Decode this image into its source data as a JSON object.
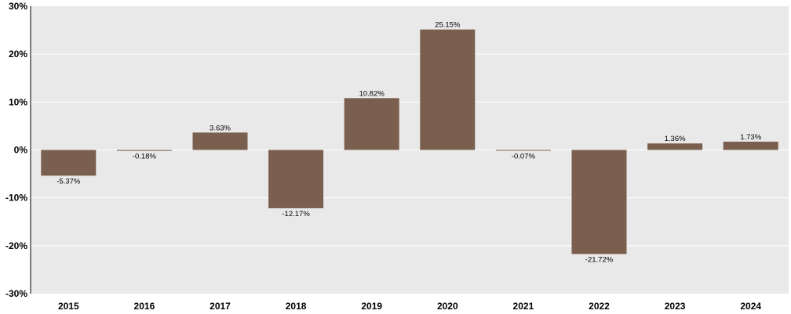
{
  "chart_data": {
    "type": "bar",
    "title": "",
    "xlabel": "",
    "ylabel": "",
    "categories": [
      "2015",
      "2016",
      "2017",
      "2018",
      "2019",
      "2020",
      "2021",
      "2022",
      "2023",
      "2024"
    ],
    "values": [
      -5.37,
      -0.18,
      3.63,
      -12.17,
      10.82,
      25.15,
      -0.07,
      -21.72,
      1.36,
      1.73
    ],
    "data_labels": [
      "-5.37%",
      "-0.18%",
      "3.63%",
      "-12.17%",
      "10.82%",
      "25.15%",
      "-0.07%",
      "-21.72%",
      "1.36%",
      "1.73%"
    ],
    "ylim": [
      -30,
      30
    ],
    "yticks": [
      30,
      20,
      10,
      0,
      -10,
      -20,
      -30
    ],
    "ytick_labels": [
      "30%",
      "20%",
      "10%",
      "0%",
      "-10%",
      "-20%",
      "-30%"
    ],
    "grid": true,
    "legend": "none",
    "colors": {
      "bar": "#7a5f4e",
      "plot_background": "#e9e9e9",
      "gridline": "#ffffff",
      "axis": "#000000"
    }
  }
}
